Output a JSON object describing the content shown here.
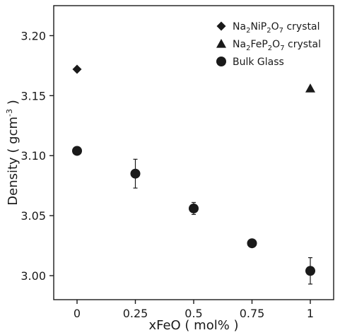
{
  "chart_data": {
    "type": "scatter",
    "xlabel": "xFeO ( mol% )",
    "ylabel": "Density ( gcm",
    "ylabel_sup": "-3",
    "ylabel_end": " )",
    "xlim": [
      -0.1,
      1.1
    ],
    "ylim": [
      2.98,
      3.225
    ],
    "x_ticks": [
      0,
      0.25,
      0.5,
      0.75,
      1
    ],
    "x_tick_labels": [
      "0",
      "0.25",
      "0.5",
      "0.75",
      "1"
    ],
    "y_ticks": [
      3.0,
      3.05,
      3.1,
      3.15,
      3.2
    ],
    "y_tick_labels": [
      "3.00",
      "3.05",
      "3.10",
      "3.15",
      "3.20"
    ],
    "grid": false,
    "legend_position": "top-right",
    "series": [
      {
        "legend_parts": [
          [
            "Na",
            ""
          ],
          [
            "2",
            "sub"
          ],
          [
            "NiP",
            ""
          ],
          [
            "2",
            "sub"
          ],
          [
            "O",
            ""
          ],
          [
            "7",
            "sub"
          ],
          [
            " crystal",
            ""
          ]
        ],
        "marker": "diamond",
        "points": [
          {
            "x": 0,
            "y": 3.172
          }
        ]
      },
      {
        "legend_parts": [
          [
            "Na",
            ""
          ],
          [
            "2",
            "sub"
          ],
          [
            "FeP",
            ""
          ],
          [
            "2",
            "sub"
          ],
          [
            "O",
            ""
          ],
          [
            "7",
            "sub"
          ],
          [
            " crystal",
            ""
          ]
        ],
        "marker": "triangle",
        "points": [
          {
            "x": 1,
            "y": 3.156
          }
        ]
      },
      {
        "legend_parts": [
          [
            "Bulk Glass",
            ""
          ]
        ],
        "marker": "circle",
        "points": [
          {
            "x": 0,
            "y": 3.104,
            "err": 0.002
          },
          {
            "x": 0.25,
            "y": 3.085,
            "err": 0.012
          },
          {
            "x": 0.5,
            "y": 3.056,
            "err": 0.005
          },
          {
            "x": 0.75,
            "y": 3.027,
            "err": 0.0
          },
          {
            "x": 1,
            "y": 3.004,
            "err": 0.011
          }
        ]
      }
    ]
  }
}
